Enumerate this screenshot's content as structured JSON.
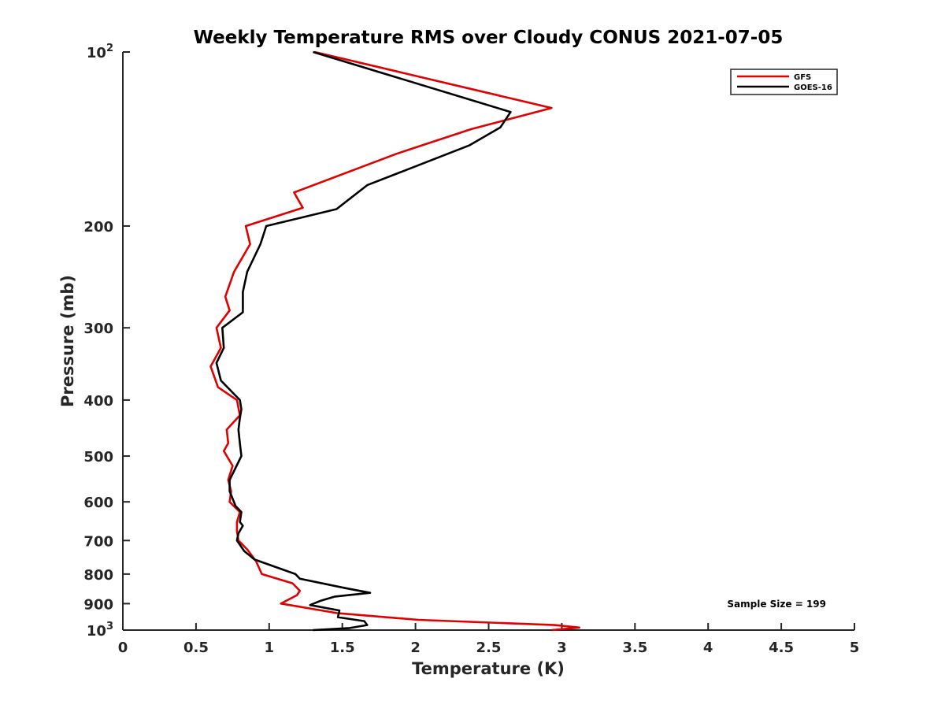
{
  "chart_data": {
    "type": "line",
    "title": "Weekly Temperature RMS over Cloudy CONUS 2021-07-05",
    "xlabel": "Temperature (K)",
    "ylabel": "Pressure (mb)",
    "xlim": [
      0,
      5
    ],
    "ylim": [
      1000,
      100
    ],
    "y_scale": "log",
    "y_reversed": true,
    "grid": false,
    "legend_position": "top-right",
    "x_ticks": [
      0,
      0.5,
      1,
      1.5,
      2,
      2.5,
      3,
      3.5,
      4,
      4.5,
      5
    ],
    "x_tick_labels": [
      "0",
      "0.5",
      "1",
      "1.5",
      "2",
      "2.5",
      "3",
      "3.5",
      "4",
      "4.5",
      "5"
    ],
    "y_ticks": [
      100,
      200,
      300,
      400,
      500,
      600,
      700,
      800,
      900,
      1000
    ],
    "y_tick_labels": [
      {
        "base": "10",
        "exp": "2"
      },
      {
        "base": "200",
        "exp": ""
      },
      {
        "base": "300",
        "exp": ""
      },
      {
        "base": "400",
        "exp": ""
      },
      {
        "base": "500",
        "exp": ""
      },
      {
        "base": "600",
        "exp": ""
      },
      {
        "base": "700",
        "exp": ""
      },
      {
        "base": "800",
        "exp": ""
      },
      {
        "base": "900",
        "exp": ""
      },
      {
        "base": "10",
        "exp": "3"
      }
    ],
    "annotation": "Sample Size = 199",
    "series": [
      {
        "name": "GFS",
        "color": "#e00000",
        "points": [
          [
            1.31,
            100
          ],
          [
            2.93,
            125
          ],
          [
            2.38,
            136
          ],
          [
            1.87,
            150
          ],
          [
            1.17,
            175
          ],
          [
            1.23,
            186
          ],
          [
            0.84,
            200
          ],
          [
            0.87,
            215
          ],
          [
            0.76,
            240
          ],
          [
            0.7,
            265
          ],
          [
            0.73,
            280
          ],
          [
            0.64,
            300
          ],
          [
            0.67,
            325
          ],
          [
            0.6,
            350
          ],
          [
            0.65,
            380
          ],
          [
            0.78,
            400
          ],
          [
            0.8,
            425
          ],
          [
            0.71,
            450
          ],
          [
            0.72,
            475
          ],
          [
            0.69,
            490
          ],
          [
            0.75,
            520
          ],
          [
            0.72,
            550
          ],
          [
            0.74,
            575
          ],
          [
            0.73,
            600
          ],
          [
            0.8,
            625
          ],
          [
            0.78,
            650
          ],
          [
            0.78,
            675
          ],
          [
            0.79,
            700
          ],
          [
            0.85,
            725
          ],
          [
            0.91,
            760
          ],
          [
            0.95,
            800
          ],
          [
            1.16,
            830
          ],
          [
            1.21,
            855
          ],
          [
            1.19,
            870
          ],
          [
            1.08,
            900
          ],
          [
            1.14,
            905
          ],
          [
            1.47,
            935
          ],
          [
            2.02,
            960
          ],
          [
            2.95,
            980
          ],
          [
            3.12,
            990
          ],
          [
            2.93,
            1000
          ]
        ]
      },
      {
        "name": "GOES-16",
        "color": "#000000",
        "points": [
          [
            1.3,
            100
          ],
          [
            2.65,
            127
          ],
          [
            2.58,
            135
          ],
          [
            2.37,
            145
          ],
          [
            1.67,
            170
          ],
          [
            1.46,
            187
          ],
          [
            0.98,
            200
          ],
          [
            0.94,
            215
          ],
          [
            0.85,
            240
          ],
          [
            0.82,
            260
          ],
          [
            0.82,
            282
          ],
          [
            0.68,
            300
          ],
          [
            0.69,
            325
          ],
          [
            0.64,
            345
          ],
          [
            0.67,
            370
          ],
          [
            0.8,
            400
          ],
          [
            0.81,
            415
          ],
          [
            0.8,
            430
          ],
          [
            0.79,
            450
          ],
          [
            0.8,
            475
          ],
          [
            0.81,
            500
          ],
          [
            0.73,
            550
          ],
          [
            0.73,
            575
          ],
          [
            0.77,
            610
          ],
          [
            0.81,
            625
          ],
          [
            0.8,
            650
          ],
          [
            0.82,
            660
          ],
          [
            0.79,
            680
          ],
          [
            0.78,
            700
          ],
          [
            0.83,
            730
          ],
          [
            0.9,
            755
          ],
          [
            1.18,
            800
          ],
          [
            1.21,
            815
          ],
          [
            1.51,
            845
          ],
          [
            1.69,
            862
          ],
          [
            1.45,
            875
          ],
          [
            1.35,
            890
          ],
          [
            1.28,
            905
          ],
          [
            1.48,
            925
          ],
          [
            1.47,
            950
          ],
          [
            1.65,
            965
          ],
          [
            1.67,
            980
          ],
          [
            1.55,
            992
          ],
          [
            1.3,
            1000
          ]
        ]
      }
    ]
  }
}
